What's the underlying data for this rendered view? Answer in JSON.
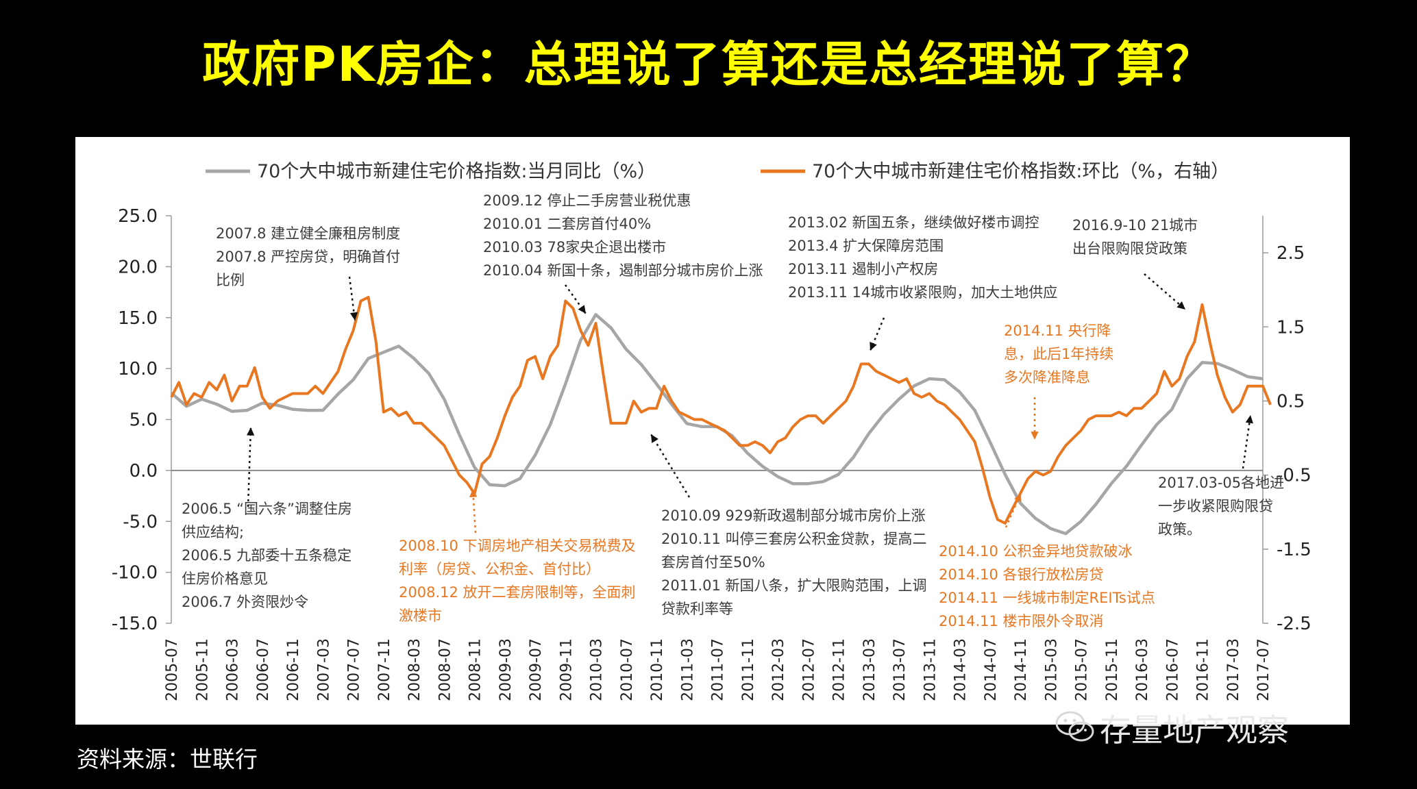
{
  "headline": "政府PK房企：总理说了算还是总经理说了算？",
  "source": "资料来源：世联行",
  "watermark": "存量地产观察",
  "chart_data": {
    "type": "line",
    "series": [
      {
        "name": "70个大中城市新建住宅价格指数:当月同比（%）",
        "axis": "left",
        "color": "#a6a6a6",
        "points": [
          [
            "2005-07",
            7.6
          ],
          [
            "2005-09",
            6.3
          ],
          [
            "2005-11",
            7.0
          ],
          [
            "2006-01",
            6.5
          ],
          [
            "2006-03",
            5.8
          ],
          [
            "2006-05",
            5.9
          ],
          [
            "2006-07",
            6.6
          ],
          [
            "2006-09",
            6.4
          ],
          [
            "2006-11",
            6.0
          ],
          [
            "2007-01",
            5.9
          ],
          [
            "2007-03",
            5.9
          ],
          [
            "2007-05",
            7.5
          ],
          [
            "2007-07",
            8.9
          ],
          [
            "2007-09",
            11.0
          ],
          [
            "2007-11",
            11.6
          ],
          [
            "2008-01",
            12.2
          ],
          [
            "2008-03",
            11.0
          ],
          [
            "2008-05",
            9.5
          ],
          [
            "2008-07",
            7.0
          ],
          [
            "2008-09",
            3.5
          ],
          [
            "2008-11",
            0.3
          ],
          [
            "2009-01",
            -1.4
          ],
          [
            "2009-03",
            -1.5
          ],
          [
            "2009-05",
            -0.8
          ],
          [
            "2009-07",
            1.5
          ],
          [
            "2009-09",
            4.5
          ],
          [
            "2009-11",
            8.5
          ],
          [
            "2010-01",
            12.8
          ],
          [
            "2010-03",
            15.3
          ],
          [
            "2010-05",
            14.0
          ],
          [
            "2010-07",
            11.9
          ],
          [
            "2010-09",
            10.4
          ],
          [
            "2010-11",
            8.5
          ],
          [
            "2011-01",
            6.5
          ],
          [
            "2011-03",
            4.6
          ],
          [
            "2011-05",
            4.3
          ],
          [
            "2011-07",
            4.3
          ],
          [
            "2011-09",
            3.4
          ],
          [
            "2011-11",
            1.7
          ],
          [
            "2012-01",
            0.4
          ],
          [
            "2012-03",
            -0.6
          ],
          [
            "2012-05",
            -1.3
          ],
          [
            "2012-07",
            -1.3
          ],
          [
            "2012-09",
            -1.1
          ],
          [
            "2012-11",
            -0.4
          ],
          [
            "2013-01",
            1.3
          ],
          [
            "2013-03",
            3.6
          ],
          [
            "2013-05",
            5.5
          ],
          [
            "2013-07",
            7.0
          ],
          [
            "2013-09",
            8.3
          ],
          [
            "2013-11",
            9.0
          ],
          [
            "2014-01",
            8.9
          ],
          [
            "2014-03",
            7.7
          ],
          [
            "2014-05",
            5.9
          ],
          [
            "2014-07",
            2.8
          ],
          [
            "2014-09",
            -0.4
          ],
          [
            "2014-11",
            -3.2
          ],
          [
            "2015-01",
            -4.7
          ],
          [
            "2015-03",
            -5.7
          ],
          [
            "2015-05",
            -6.2
          ],
          [
            "2015-07",
            -5.0
          ],
          [
            "2015-09",
            -3.3
          ],
          [
            "2015-11",
            -1.3
          ],
          [
            "2016-01",
            0.4
          ],
          [
            "2016-03",
            2.5
          ],
          [
            "2016-05",
            4.5
          ],
          [
            "2016-07",
            6.0
          ],
          [
            "2016-09",
            9.0
          ],
          [
            "2016-11",
            10.6
          ],
          [
            "2017-01",
            10.5
          ],
          [
            "2017-03",
            9.9
          ],
          [
            "2017-05",
            9.2
          ],
          [
            "2017-07",
            9.0
          ]
        ]
      },
      {
        "name": "70个大中城市新建住宅价格指数:环比（%，右轴）",
        "axis": "right",
        "color": "#e87722",
        "points": [
          [
            "2005-07",
            0.55
          ],
          [
            "2005-08",
            0.75
          ],
          [
            "2005-09",
            0.45
          ],
          [
            "2005-10",
            0.6
          ],
          [
            "2005-11",
            0.55
          ],
          [
            "2005-12",
            0.75
          ],
          [
            "2006-01",
            0.65
          ],
          [
            "2006-02",
            0.85
          ],
          [
            "2006-03",
            0.5
          ],
          [
            "2006-04",
            0.7
          ],
          [
            "2006-05",
            0.7
          ],
          [
            "2006-06",
            0.95
          ],
          [
            "2006-07",
            0.55
          ],
          [
            "2006-08",
            0.4
          ],
          [
            "2006-09",
            0.5
          ],
          [
            "2006-10",
            0.55
          ],
          [
            "2006-11",
            0.6
          ],
          [
            "2006-12",
            0.6
          ],
          [
            "2007-01",
            0.6
          ],
          [
            "2007-02",
            0.7
          ],
          [
            "2007-03",
            0.6
          ],
          [
            "2007-04",
            0.75
          ],
          [
            "2007-05",
            0.9
          ],
          [
            "2007-06",
            1.2
          ],
          [
            "2007-07",
            1.45
          ],
          [
            "2007-08",
            1.85
          ],
          [
            "2007-09",
            1.9
          ],
          [
            "2007-10",
            1.3
          ],
          [
            "2007-11",
            0.35
          ],
          [
            "2007-12",
            0.4
          ],
          [
            "2008-01",
            0.3
          ],
          [
            "2008-02",
            0.35
          ],
          [
            "2008-03",
            0.2
          ],
          [
            "2008-04",
            0.2
          ],
          [
            "2008-05",
            0.1
          ],
          [
            "2008-06",
            0.0
          ],
          [
            "2008-07",
            -0.1
          ],
          [
            "2008-08",
            -0.3
          ],
          [
            "2008-09",
            -0.5
          ],
          [
            "2008-10",
            -0.6
          ],
          [
            "2008-11",
            -0.75
          ],
          [
            "2008-12",
            -0.35
          ],
          [
            "2009-01",
            -0.25
          ],
          [
            "2009-02",
            0.0
          ],
          [
            "2009-03",
            0.3
          ],
          [
            "2009-04",
            0.55
          ],
          [
            "2009-05",
            0.7
          ],
          [
            "2009-06",
            1.05
          ],
          [
            "2009-07",
            1.1
          ],
          [
            "2009-08",
            0.8
          ],
          [
            "2009-09",
            1.1
          ],
          [
            "2009-10",
            1.25
          ],
          [
            "2009-11",
            1.85
          ],
          [
            "2009-12",
            1.75
          ],
          [
            "2010-01",
            1.45
          ],
          [
            "2010-02",
            1.25
          ],
          [
            "2010-03",
            1.55
          ],
          [
            "2010-04",
            0.85
          ],
          [
            "2010-05",
            0.2
          ],
          [
            "2010-06",
            0.2
          ],
          [
            "2010-07",
            0.2
          ],
          [
            "2010-08",
            0.5
          ],
          [
            "2010-09",
            0.35
          ],
          [
            "2010-10",
            0.4
          ],
          [
            "2010-11",
            0.4
          ],
          [
            "2010-12",
            0.7
          ],
          [
            "2011-01",
            0.5
          ],
          [
            "2011-02",
            0.35
          ],
          [
            "2011-03",
            0.3
          ],
          [
            "2011-04",
            0.25
          ],
          [
            "2011-05",
            0.25
          ],
          [
            "2011-06",
            0.2
          ],
          [
            "2011-07",
            0.15
          ],
          [
            "2011-08",
            0.1
          ],
          [
            "2011-09",
            0.0
          ],
          [
            "2011-10",
            -0.1
          ],
          [
            "2011-11",
            -0.1
          ],
          [
            "2011-12",
            -0.05
          ],
          [
            "2012-01",
            -0.1
          ],
          [
            "2012-02",
            -0.2
          ],
          [
            "2012-03",
            -0.05
          ],
          [
            "2012-04",
            0.0
          ],
          [
            "2012-05",
            0.15
          ],
          [
            "2012-06",
            0.25
          ],
          [
            "2012-07",
            0.3
          ],
          [
            "2012-08",
            0.3
          ],
          [
            "2012-09",
            0.2
          ],
          [
            "2012-10",
            0.3
          ],
          [
            "2012-11",
            0.4
          ],
          [
            "2012-12",
            0.5
          ],
          [
            "2013-01",
            0.7
          ],
          [
            "2013-02",
            1.0
          ],
          [
            "2013-03",
            1.0
          ],
          [
            "2013-04",
            0.9
          ],
          [
            "2013-05",
            0.85
          ],
          [
            "2013-06",
            0.8
          ],
          [
            "2013-07",
            0.75
          ],
          [
            "2013-08",
            0.8
          ],
          [
            "2013-09",
            0.6
          ],
          [
            "2013-10",
            0.55
          ],
          [
            "2013-11",
            0.6
          ],
          [
            "2013-12",
            0.5
          ],
          [
            "2014-01",
            0.45
          ],
          [
            "2014-02",
            0.35
          ],
          [
            "2014-03",
            0.25
          ],
          [
            "2014-04",
            0.1
          ],
          [
            "2014-05",
            -0.05
          ],
          [
            "2014-06",
            -0.4
          ],
          [
            "2014-07",
            -0.8
          ],
          [
            "2014-08",
            -1.1
          ],
          [
            "2014-09",
            -1.15
          ],
          [
            "2014-10",
            -0.95
          ],
          [
            "2014-11",
            -0.75
          ],
          [
            "2014-12",
            -0.55
          ],
          [
            "2015-01",
            -0.45
          ],
          [
            "2015-02",
            -0.5
          ],
          [
            "2015-03",
            -0.45
          ],
          [
            "2015-04",
            -0.25
          ],
          [
            "2015-05",
            -0.1
          ],
          [
            "2015-06",
            0.0
          ],
          [
            "2015-07",
            0.1
          ],
          [
            "2015-08",
            0.25
          ],
          [
            "2015-09",
            0.3
          ],
          [
            "2015-10",
            0.3
          ],
          [
            "2015-11",
            0.3
          ],
          [
            "2015-12",
            0.35
          ],
          [
            "2016-01",
            0.3
          ],
          [
            "2016-02",
            0.4
          ],
          [
            "2016-03",
            0.4
          ],
          [
            "2016-04",
            0.5
          ],
          [
            "2016-05",
            0.6
          ],
          [
            "2016-06",
            0.9
          ],
          [
            "2016-07",
            0.7
          ],
          [
            "2016-08",
            0.8
          ],
          [
            "2016-09",
            1.1
          ],
          [
            "2016-10",
            1.3
          ],
          [
            "2016-11",
            1.8
          ],
          [
            "2016-12",
            1.3
          ],
          [
            "2017-01",
            0.85
          ],
          [
            "2017-02",
            0.55
          ],
          [
            "2017-03",
            0.35
          ],
          [
            "2017-04",
            0.45
          ],
          [
            "2017-05",
            0.7
          ],
          [
            "2017-06",
            0.7
          ],
          [
            "2017-07",
            0.7
          ],
          [
            "2017-08",
            0.45
          ]
        ]
      }
    ],
    "left_axis": {
      "ticks": [
        "25.0",
        "20.0",
        "15.0",
        "10.0",
        "5.0",
        "0.0",
        "-5.0",
        "-10.0",
        "-15.0"
      ],
      "ylim": [
        -15,
        25
      ]
    },
    "right_axis": {
      "ticks": [
        "2.5",
        "1.5",
        "0.5",
        "-0.5",
        "-1.5",
        "-2.5"
      ],
      "ylim": [
        -2.5,
        3
      ]
    },
    "x_ticks": [
      "2005-07",
      "2005-11",
      "2006-03",
      "2006-07",
      "2006-11",
      "2007-03",
      "2007-07",
      "2007-11",
      "2008-03",
      "2008-07",
      "2008-11",
      "2009-03",
      "2009-07",
      "2009-11",
      "2010-03",
      "2010-07",
      "2010-11",
      "2011-03",
      "2011-07",
      "2011-11",
      "2012-03",
      "2012-07",
      "2012-11",
      "2013-03",
      "2013-07",
      "2013-11",
      "2014-03",
      "2014-07",
      "2014-11",
      "2015-03",
      "2015-07",
      "2015-11",
      "2016-03",
      "2016-07",
      "2016-11",
      "2017-03",
      "2017-07"
    ],
    "annotations": [
      {
        "color": "#3c3c3c",
        "lines": [
          "2007.8  建立健全廉租房制度",
          "2007.8  严控房贷，明确首付",
          "比例"
        ]
      },
      {
        "color": "#3c3c3c",
        "lines": [
          "2009.12 停止二手房营业税优惠",
          "2010.01 二套房首付40%",
          "2010.03 78家央企退出楼市",
          "2010.04 新国十条，遏制部分城市房价上涨"
        ]
      },
      {
        "color": "#3c3c3c",
        "lines": [
          "2013.02 新国五条，继续做好楼市调控",
          "2013.4 扩大保障房范围",
          "2013.11 遏制小产权房",
          "2013.11 14城市收紧限购，加大土地供应"
        ]
      },
      {
        "color": "#3c3c3c",
        "lines": [
          "2016.9-10 21城市",
          "出台限购限贷政策"
        ]
      },
      {
        "color": "#e87722",
        "lines": [
          "2014.11 央行降",
          "息，此后1年持续",
          "多次降准降息"
        ]
      },
      {
        "color": "#3c3c3c",
        "lines": [
          "2006.5 “国六条”调整住房",
          "供应结构;",
          "2006.5  九部委十五条稳定",
          "住房价格意见",
          "2006.7  外资限炒令"
        ]
      },
      {
        "color": "#e87722",
        "lines": [
          "2008.10 下调房地产相关交易税费及",
          "利率（房贷、公积金、首付比）",
          "2008.12 放开二套房限制等，全面刺",
          "激楼市"
        ]
      },
      {
        "color": "#3c3c3c",
        "lines": [
          "2010.09 929新政遏制部分城市房价上涨",
          "2010.11 叫停三套房公积金贷款，提高二",
          "套房首付至50%",
          "2011.01 新国八条，扩大限购范围，上调",
          "贷款利率等"
        ]
      },
      {
        "color": "#e87722",
        "lines": [
          "2014.10 公积金异地贷款破冰",
          "2014.10 各银行放松房贷",
          "2014.11 一线城市制定REITs试点",
          "2014.11 楼市限外令取消"
        ]
      },
      {
        "color": "#3c3c3c",
        "lines": [
          "2017.03-05各地进",
          "一步收紧限购限贷",
          "政策。"
        ]
      }
    ]
  }
}
